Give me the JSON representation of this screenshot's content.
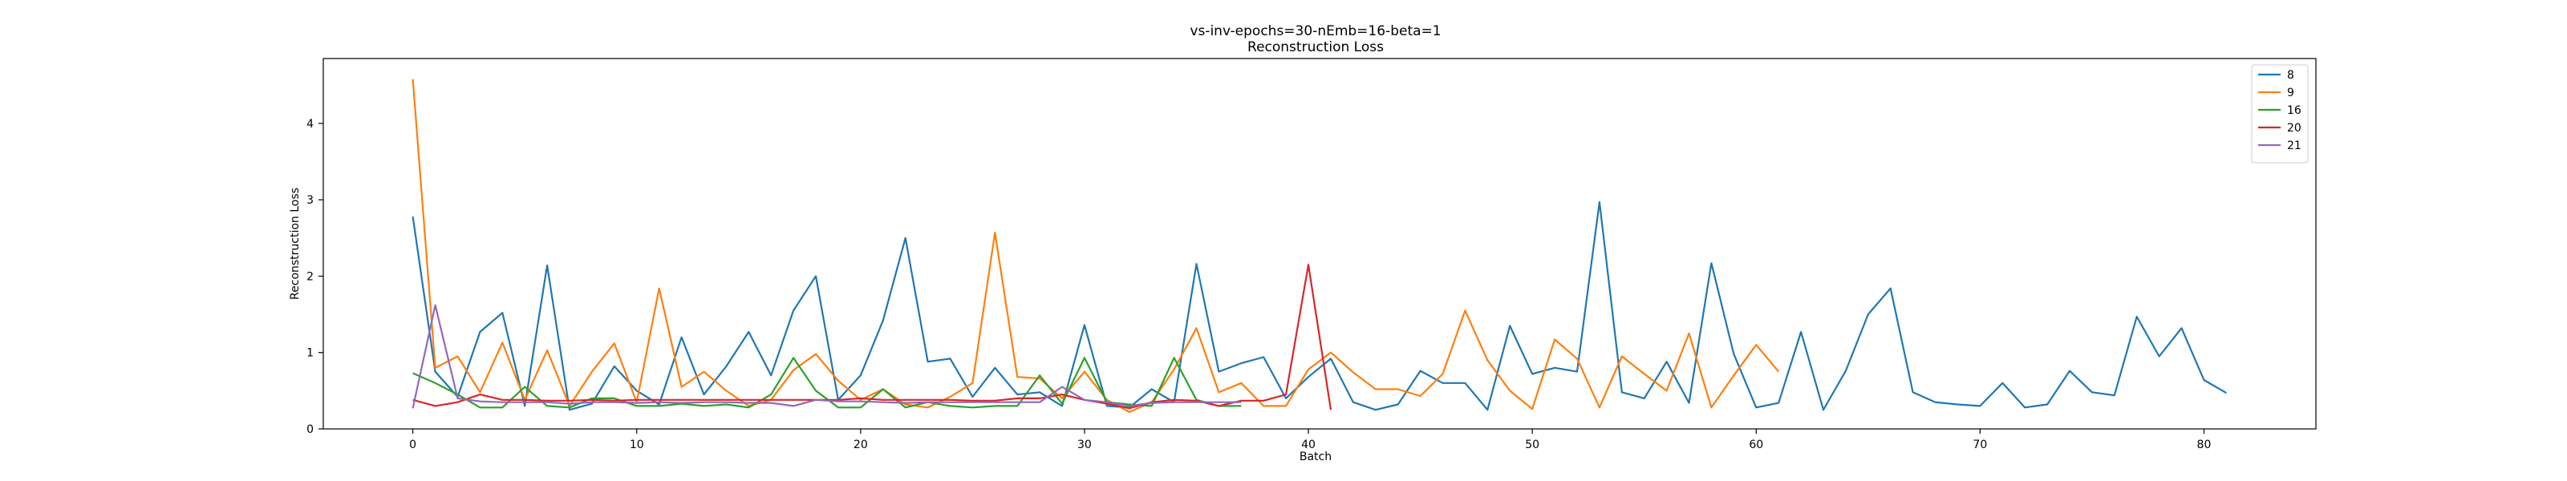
{
  "chart_data": {
    "type": "line",
    "title": "vs-inv-epochs=30-nEmb=16-beta=1",
    "subtitle": "Reconstruction Loss",
    "xlabel": "Batch",
    "ylabel": "Reconstruction Loss",
    "xlim": [
      -4,
      85
    ],
    "ylim": [
      0,
      4.85
    ],
    "xticks": [
      0,
      10,
      20,
      30,
      40,
      50,
      60,
      70,
      80
    ],
    "yticks": [
      0,
      1,
      2,
      3,
      4
    ],
    "legend_position": "top-right",
    "grid": false,
    "series": [
      {
        "name": "8",
        "color": "#1f77b4",
        "x": [
          0,
          1,
          2,
          3,
          4,
          5,
          6,
          7,
          8,
          9,
          10,
          11,
          12,
          13,
          14,
          15,
          16,
          17,
          18,
          19,
          20,
          21,
          22,
          23,
          24,
          25,
          26,
          27,
          28,
          29,
          30,
          31,
          32,
          33,
          34,
          35,
          36,
          37,
          38,
          39,
          40,
          41,
          42,
          43,
          44,
          45,
          46,
          47,
          48,
          49,
          50,
          51,
          52,
          53,
          54,
          55,
          56,
          57,
          58,
          59,
          60,
          61,
          62,
          63,
          64,
          65,
          66,
          67,
          68,
          69,
          70,
          71,
          72,
          73,
          74,
          75,
          76,
          77,
          78,
          79,
          80,
          81
        ],
        "y": [
          2.78,
          0.75,
          0.42,
          1.27,
          1.52,
          0.3,
          2.14,
          0.25,
          0.33,
          0.82,
          0.5,
          0.32,
          1.2,
          0.45,
          0.82,
          1.27,
          0.7,
          1.55,
          2.0,
          0.38,
          0.7,
          1.42,
          2.5,
          0.88,
          0.92,
          0.42,
          0.8,
          0.45,
          0.48,
          0.3,
          1.36,
          0.3,
          0.28,
          0.52,
          0.35,
          2.16,
          0.75,
          0.86,
          0.94,
          0.4,
          0.68,
          0.92,
          0.35,
          0.25,
          0.32,
          0.76,
          0.6,
          0.6,
          0.25,
          1.35,
          0.72,
          0.8,
          0.75,
          2.97,
          0.48,
          0.4,
          0.88,
          0.34,
          2.17,
          0.98,
          0.28,
          0.34,
          1.27,
          0.25,
          0.76,
          1.5,
          1.84,
          0.48,
          0.35,
          0.32,
          0.3,
          0.6,
          0.28,
          0.32,
          0.76,
          0.48,
          0.44,
          1.47,
          0.95,
          1.32,
          0.64,
          0.47
        ]
      },
      {
        "name": "9",
        "color": "#ff7f0e",
        "x": [
          0,
          1,
          2,
          3,
          4,
          5,
          6,
          7,
          8,
          9,
          10,
          11,
          12,
          13,
          14,
          15,
          16,
          17,
          18,
          19,
          20,
          21,
          22,
          23,
          24,
          25,
          26,
          27,
          28,
          29,
          30,
          31,
          32,
          33,
          34,
          35,
          36,
          37,
          38,
          39,
          40,
          41,
          42,
          43,
          44,
          45,
          46,
          47,
          48,
          49,
          50,
          51,
          52,
          53,
          54,
          55,
          56,
          57,
          58,
          59,
          60,
          61
        ],
        "y": [
          4.58,
          0.8,
          0.95,
          0.48,
          1.13,
          0.38,
          1.03,
          0.3,
          0.75,
          1.12,
          0.35,
          1.84,
          0.55,
          0.75,
          0.5,
          0.3,
          0.38,
          0.77,
          0.98,
          0.63,
          0.38,
          0.52,
          0.32,
          0.28,
          0.42,
          0.6,
          2.57,
          0.68,
          0.66,
          0.4,
          0.75,
          0.38,
          0.22,
          0.35,
          0.78,
          1.32,
          0.48,
          0.6,
          0.3,
          0.3,
          0.78,
          1.0,
          0.74,
          0.52,
          0.52,
          0.43,
          0.72,
          1.55,
          0.9,
          0.5,
          0.26,
          1.17,
          0.92,
          0.28,
          0.95,
          0.72,
          0.5,
          1.25,
          0.28,
          0.7,
          1.1,
          0.75
        ]
      },
      {
        "name": "16",
        "color": "#2ca02c",
        "x": [
          0,
          1,
          2,
          3,
          4,
          5,
          6,
          7,
          8,
          9,
          10,
          11,
          12,
          13,
          14,
          15,
          16,
          17,
          18,
          19,
          20,
          21,
          22,
          23,
          24,
          25,
          26,
          27,
          28,
          29,
          30,
          31,
          32,
          33,
          34,
          35,
          36,
          37
        ],
        "y": [
          0.73,
          0.6,
          0.45,
          0.28,
          0.28,
          0.55,
          0.3,
          0.28,
          0.4,
          0.4,
          0.3,
          0.3,
          0.33,
          0.3,
          0.32,
          0.28,
          0.45,
          0.93,
          0.5,
          0.28,
          0.28,
          0.52,
          0.28,
          0.35,
          0.3,
          0.28,
          0.3,
          0.3,
          0.7,
          0.33,
          0.93,
          0.35,
          0.32,
          0.3,
          0.93,
          0.38,
          0.3,
          0.3
        ]
      },
      {
        "name": "20",
        "color": "#d62728",
        "x": [
          0,
          1,
          2,
          3,
          4,
          5,
          6,
          7,
          8,
          9,
          10,
          11,
          12,
          13,
          14,
          15,
          16,
          17,
          18,
          19,
          20,
          21,
          22,
          23,
          24,
          25,
          26,
          27,
          28,
          29,
          30,
          31,
          32,
          33,
          34,
          35,
          36,
          37,
          38,
          39,
          40,
          41
        ],
        "y": [
          0.38,
          0.3,
          0.35,
          0.45,
          0.38,
          0.38,
          0.37,
          0.37,
          0.38,
          0.37,
          0.38,
          0.38,
          0.38,
          0.38,
          0.38,
          0.38,
          0.38,
          0.38,
          0.38,
          0.38,
          0.4,
          0.38,
          0.38,
          0.38,
          0.38,
          0.37,
          0.37,
          0.4,
          0.4,
          0.45,
          0.38,
          0.33,
          0.27,
          0.35,
          0.38,
          0.37,
          0.3,
          0.37,
          0.37,
          0.45,
          2.15,
          0.25
        ]
      },
      {
        "name": "21",
        "color": "#9467bd",
        "x": [
          0,
          1,
          2,
          3,
          4,
          5,
          6,
          7,
          8,
          9,
          10,
          11,
          12,
          13,
          14,
          15,
          16,
          17,
          18,
          19,
          20,
          21,
          22,
          23,
          24,
          25,
          26,
          27,
          28,
          29,
          30,
          31,
          32,
          33,
          34,
          35,
          36,
          37
        ],
        "y": [
          0.27,
          1.62,
          0.4,
          0.36,
          0.35,
          0.35,
          0.35,
          0.33,
          0.35,
          0.35,
          0.34,
          0.35,
          0.34,
          0.35,
          0.35,
          0.34,
          0.34,
          0.3,
          0.38,
          0.36,
          0.36,
          0.35,
          0.34,
          0.35,
          0.35,
          0.35,
          0.35,
          0.35,
          0.35,
          0.55,
          0.38,
          0.35,
          0.3,
          0.34,
          0.35,
          0.35,
          0.35,
          0.35
        ]
      }
    ]
  }
}
